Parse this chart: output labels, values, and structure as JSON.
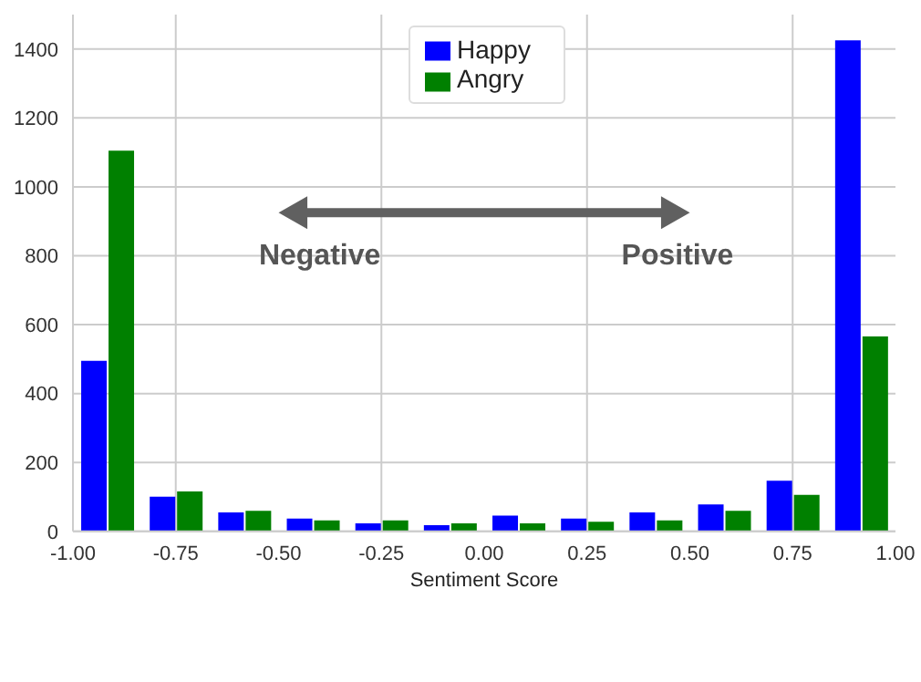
{
  "chart_data": {
    "type": "histogram",
    "xlabel": "Sentiment Score",
    "bins": [
      -1,
      -0.8333,
      -0.6667,
      -0.5,
      -0.3333,
      -0.1667,
      0,
      0.1667,
      0.3333,
      0.5,
      0.6667,
      0.8333,
      1
    ],
    "series": [
      {
        "name": "Happy",
        "color": "#0000ff",
        "values": [
          495,
          101,
          55,
          37,
          23,
          18,
          46,
          37,
          55,
          78,
          147,
          1425
        ]
      },
      {
        "name": "Angry",
        "color": "#008000",
        "values": [
          1105,
          116,
          60,
          32,
          32,
          23,
          23,
          28,
          32,
          60,
          106,
          566
        ]
      }
    ],
    "xlim": [
      -1,
      1
    ],
    "xticks": [
      {
        "value": -1,
        "label": "-1.00"
      },
      -0.75,
      {
        "value": -0.5,
        "label": "-0.50"
      },
      -0.25,
      {
        "value": 0,
        "label": "0.00"
      },
      0.25,
      {
        "value": 0.5,
        "label": "0.50"
      },
      0.75,
      {
        "value": 1,
        "label": "1.00"
      }
    ],
    "ylim": [
      0,
      1500
    ],
    "yticks": [
      0,
      200,
      400,
      600,
      800,
      1000,
      1200,
      1400
    ],
    "grid": true,
    "legend": "top",
    "annotations": [
      "Negative",
      "Positive"
    ]
  }
}
